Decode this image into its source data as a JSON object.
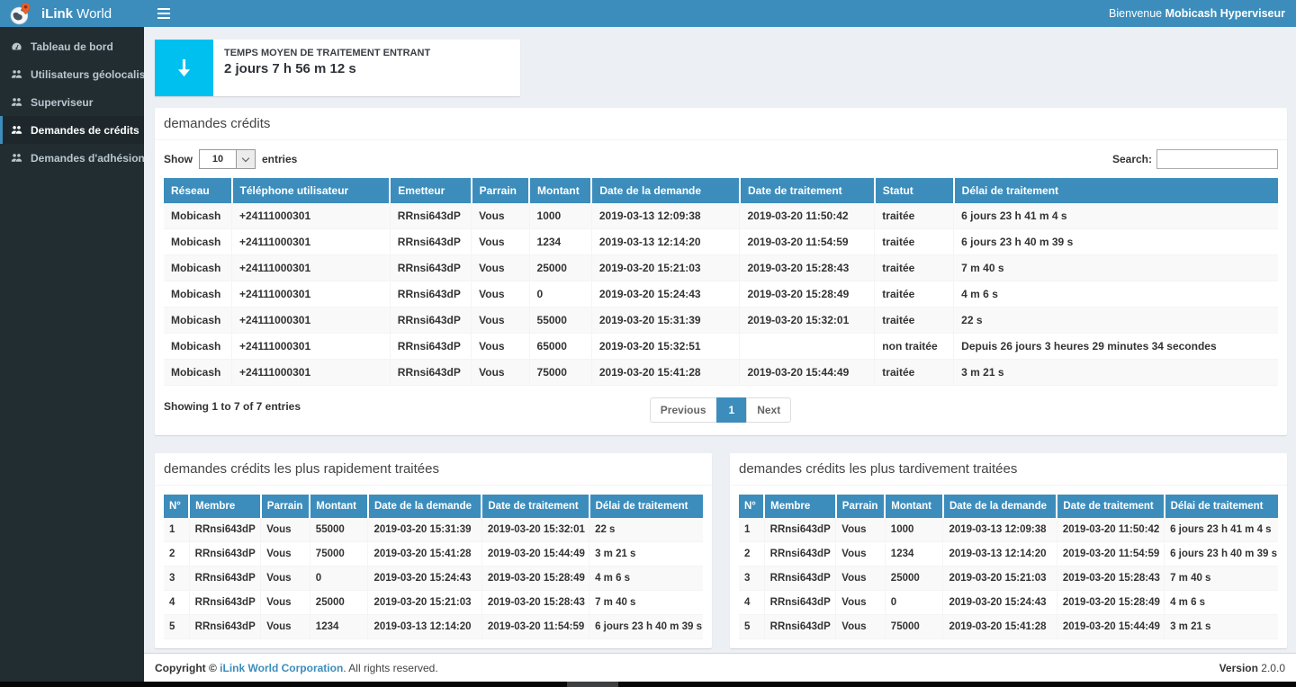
{
  "colors": {
    "header_blue": "#3c8dbc",
    "sidebar_dark": "#222d32",
    "sidebar_active": "#1e282c",
    "aqua": "#00c0ef",
    "thead_blue": "#3c8dbc",
    "accent": "#3c8dbc",
    "stripe": "#f9f9f9",
    "link_blue": "#3c8dbc",
    "body_bg": "#ecf0f5"
  },
  "header": {
    "brand_bold": "iLink",
    "brand_light": " World",
    "welcome_prefix": "Bienvenue ",
    "welcome_user": "Mobicash Hyperviseur"
  },
  "sidebar": {
    "items": [
      {
        "name": "tableau-de-bord",
        "icon": "dashboard-icon",
        "label": "Tableau de bord",
        "active": false
      },
      {
        "name": "utilisateurs-geolocalises",
        "icon": "users-icon",
        "label": "Utilisateurs géolocalisés",
        "active": false
      },
      {
        "name": "superviseur",
        "icon": "users-icon",
        "label": "Superviseur",
        "active": false
      },
      {
        "name": "demandes-de-credits",
        "icon": "users-icon",
        "label": "Demandes de crédits",
        "active": true
      },
      {
        "name": "demandes-adhesion",
        "icon": "users-icon",
        "label": "Demandes d'adhésion",
        "active": false
      }
    ]
  },
  "info_box": {
    "icon": "arrow-down-icon",
    "label": "TEMPS MOYEN DE TRAITEMENT ENTRANT",
    "value": "2 jours 7 h 56 m 12 s"
  },
  "credits_panel": {
    "title": "demandes crédits",
    "show_label": "Show",
    "page_size": "10",
    "entries_label": "entries",
    "search_label": "Search:",
    "columns": [
      "Réseau",
      "Téléphone utilisateur",
      "Emetteur",
      "Parrain",
      "Montant",
      "Date de la demande",
      "Date de traitement",
      "Statut",
      "Délai de traitement"
    ],
    "rows": [
      [
        "Mobicash",
        "+24111000301",
        "RRnsi643dP",
        "Vous",
        "1000",
        "2019-03-13 12:09:38",
        "2019-03-20 11:50:42",
        "traitée",
        "6 jours 23 h 41 m 4 s"
      ],
      [
        "Mobicash",
        "+24111000301",
        "RRnsi643dP",
        "Vous",
        "1234",
        "2019-03-13 12:14:20",
        "2019-03-20 11:54:59",
        "traitée",
        "6 jours 23 h 40 m 39 s"
      ],
      [
        "Mobicash",
        "+24111000301",
        "RRnsi643dP",
        "Vous",
        "25000",
        "2019-03-20 15:21:03",
        "2019-03-20 15:28:43",
        "traitée",
        "7 m 40 s"
      ],
      [
        "Mobicash",
        "+24111000301",
        "RRnsi643dP",
        "Vous",
        "0",
        "2019-03-20 15:24:43",
        "2019-03-20 15:28:49",
        "traitée",
        "4 m 6 s"
      ],
      [
        "Mobicash",
        "+24111000301",
        "RRnsi643dP",
        "Vous",
        "55000",
        "2019-03-20 15:31:39",
        "2019-03-20 15:32:01",
        "traitée",
        "22 s"
      ],
      [
        "Mobicash",
        "+24111000301",
        "RRnsi643dP",
        "Vous",
        "65000",
        "2019-03-20 15:32:51",
        "",
        "non traitée",
        "Depuis 26 jours 3 heures 29 minutes 34 secondes"
      ],
      [
        "Mobicash",
        "+24111000301",
        "RRnsi643dP",
        "Vous",
        "75000",
        "2019-03-20 15:41:28",
        "2019-03-20 15:44:49",
        "traitée",
        "3 m 21 s"
      ]
    ],
    "info": "Showing 1 to 7 of 7 entries",
    "pagination": {
      "previous": "Previous",
      "page": "1",
      "next": "Next"
    }
  },
  "fastest_panel": {
    "title": "demandes crédits les plus rapidement traitées",
    "columns": [
      "N°",
      "Membre",
      "Parrain",
      "Montant",
      "Date de la demande",
      "Date de traitement",
      "Délai de traitement"
    ],
    "rows": [
      [
        "1",
        "RRnsi643dP",
        "Vous",
        "55000",
        "2019-03-20 15:31:39",
        "2019-03-20 15:32:01",
        "22 s"
      ],
      [
        "2",
        "RRnsi643dP",
        "Vous",
        "75000",
        "2019-03-20 15:41:28",
        "2019-03-20 15:44:49",
        "3 m 21 s"
      ],
      [
        "3",
        "RRnsi643dP",
        "Vous",
        "0",
        "2019-03-20 15:24:43",
        "2019-03-20 15:28:49",
        "4 m 6 s"
      ],
      [
        "4",
        "RRnsi643dP",
        "Vous",
        "25000",
        "2019-03-20 15:21:03",
        "2019-03-20 15:28:43",
        "7 m 40 s"
      ],
      [
        "5",
        "RRnsi643dP",
        "Vous",
        "1234",
        "2019-03-13 12:14:20",
        "2019-03-20 11:54:59",
        "6 jours 23 h 40 m 39 s"
      ]
    ]
  },
  "slowest_panel": {
    "title": "demandes crédits les plus tardivement traitées",
    "columns": [
      "N°",
      "Membre",
      "Parrain",
      "Montant",
      "Date de la demande",
      "Date de traitement",
      "Délai de traitement"
    ],
    "rows": [
      [
        "1",
        "RRnsi643dP",
        "Vous",
        "1000",
        "2019-03-13 12:09:38",
        "2019-03-20 11:50:42",
        "6 jours 23 h 41 m 4 s"
      ],
      [
        "2",
        "RRnsi643dP",
        "Vous",
        "1234",
        "2019-03-13 12:14:20",
        "2019-03-20 11:54:59",
        "6 jours 23 h 40 m 39 s"
      ],
      [
        "3",
        "RRnsi643dP",
        "Vous",
        "25000",
        "2019-03-20 15:21:03",
        "2019-03-20 15:28:43",
        "7 m 40 s"
      ],
      [
        "4",
        "RRnsi643dP",
        "Vous",
        "0",
        "2019-03-20 15:24:43",
        "2019-03-20 15:28:49",
        "4 m 6 s"
      ],
      [
        "5",
        "RRnsi643dP",
        "Vous",
        "75000",
        "2019-03-20 15:41:28",
        "2019-03-20 15:44:49",
        "3 m 21 s"
      ]
    ]
  },
  "footer": {
    "copyright_bold": "Copyright © ",
    "company_link": "iLink World Corporation",
    "rights_text": ". All rights reserved.",
    "version_label": "Version",
    "version_value": "2.0.0"
  }
}
